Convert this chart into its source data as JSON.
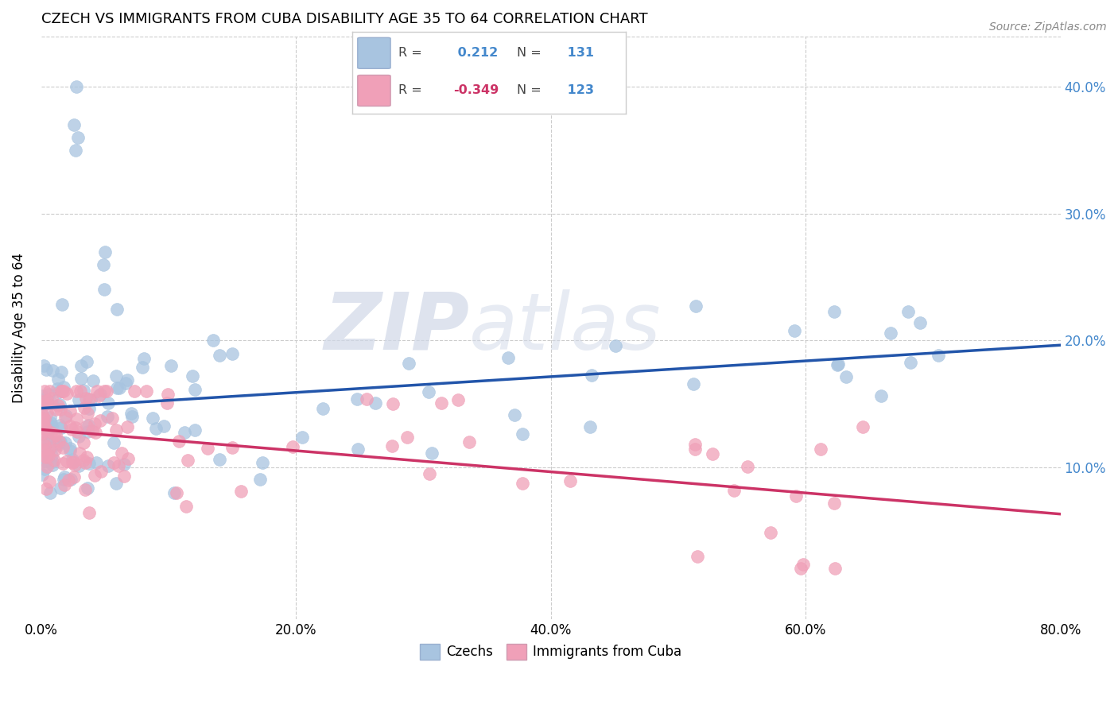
{
  "title": "CZECH VS IMMIGRANTS FROM CUBA DISABILITY AGE 35 TO 64 CORRELATION CHART",
  "source": "Source: ZipAtlas.com",
  "xlabel_ticks": [
    "0.0%",
    "20.0%",
    "40.0%",
    "60.0%",
    "80.0%"
  ],
  "xlabel_vals": [
    0.0,
    0.2,
    0.4,
    0.6,
    0.8
  ],
  "ylabel": "Disability Age 35 to 64",
  "ylabel_ticks": [
    "10.0%",
    "20.0%",
    "30.0%",
    "40.0%"
  ],
  "ylabel_vals": [
    0.1,
    0.2,
    0.3,
    0.4
  ],
  "xlim": [
    0.0,
    0.8
  ],
  "ylim": [
    -0.02,
    0.44
  ],
  "blue_R": 0.212,
  "blue_N": 131,
  "pink_R": -0.349,
  "pink_N": 123,
  "blue_color": "#a8c4e0",
  "pink_color": "#f0a0b8",
  "blue_line_color": "#2255aa",
  "pink_line_color": "#cc3366",
  "watermark_zip": "ZIP",
  "watermark_atlas": "atlas",
  "legend_label1": "Czechs",
  "legend_label2": "Immigrants from Cuba",
  "grid_color": "#cccccc",
  "title_fontsize": 13,
  "tick_fontsize": 12
}
